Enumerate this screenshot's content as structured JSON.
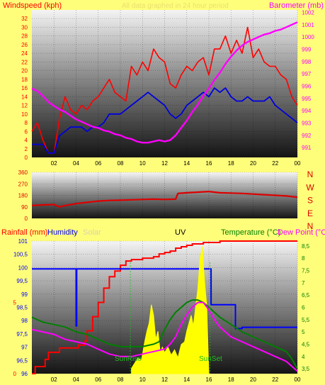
{
  "colors": {
    "background": "#fffe7a",
    "wind_avg": "#0000dd",
    "wind_gust": "#ff0000",
    "barometer": "#ff00ff",
    "direction": "#dd0000",
    "rain": "#ff0000",
    "humidity": "#0000ff",
    "solar": "#ffff00",
    "uv": "#ff0000",
    "temperature": "#008000",
    "dew_point": "#ff00ff",
    "header_faint": "#e8e070",
    "solar_label": "#d8d4a8"
  },
  "top_header": {
    "left_label": "Windspeed (kph)",
    "center_label": "All data graphed in 24 hour period",
    "right_label": "Barometer (mb)"
  },
  "bottom_header": {
    "rain": "Rainfall (mm)",
    "humidity": "Humidity",
    "solar": "Solar",
    "uv": "UV",
    "temperature": "Temperature (°C)",
    "dew_point": "Dew Point (°C)"
  },
  "annotations": {
    "sunrise": "SunRise",
    "sunset": "SunSet"
  },
  "x_ticks": [
    "02",
    "04",
    "06",
    "08",
    "10",
    "12",
    "14",
    "16",
    "18",
    "20",
    "22",
    "00"
  ],
  "chart_data": [
    {
      "type": "line",
      "name": "wind-barometer",
      "x_range": [
        0,
        24
      ],
      "y_left": {
        "label": "Windspeed (kph)",
        "ticks": [
          "0",
          "2",
          "4",
          "6",
          "8",
          "10",
          "12",
          "14",
          "16",
          "18",
          "20",
          "22",
          "24",
          "26",
          "28",
          "30",
          "32"
        ],
        "range": [
          0,
          34
        ]
      },
      "y_right": {
        "label": "Barometer (mb)",
        "ticks": [
          "991",
          "992",
          "993",
          "994",
          "995",
          "996",
          "997",
          "998",
          "999",
          "1000",
          "1001",
          "1002"
        ],
        "range": [
          990.2,
          1002.2
        ]
      },
      "series": [
        {
          "key": "gust",
          "axis": "left",
          "x": [
            0,
            0.5,
            1,
            1.5,
            2,
            2.5,
            3,
            3.5,
            4,
            4.5,
            5,
            5.5,
            6,
            6.5,
            7,
            7.5,
            8,
            8.5,
            9,
            9.5,
            10,
            10.5,
            11,
            11.5,
            12,
            12.5,
            13,
            13.5,
            14,
            14.5,
            15,
            15.5,
            16,
            16.5,
            17,
            17.5,
            18,
            18.5,
            19,
            19.5,
            20,
            20.5,
            21,
            21.5,
            22,
            22.5,
            23,
            23.5,
            24
          ],
          "y": [
            6,
            8,
            4,
            1,
            1,
            9,
            14,
            11,
            10,
            12,
            11,
            13,
            14,
            16,
            18,
            15,
            14,
            13,
            21,
            19,
            22,
            20,
            25,
            23,
            22,
            17,
            16,
            19,
            21,
            20,
            22,
            23,
            19,
            25,
            25,
            28,
            24,
            27,
            24,
            30,
            23,
            25,
            22,
            21,
            21,
            19,
            18,
            14,
            12
          ]
        },
        {
          "key": "avg",
          "axis": "left",
          "x": [
            0,
            0.5,
            1,
            1.5,
            2,
            2.5,
            3,
            3.5,
            4,
            4.5,
            5,
            5.5,
            6,
            6.5,
            7,
            7.5,
            8,
            8.5,
            9,
            9.5,
            10,
            10.5,
            11,
            11.5,
            12,
            12.5,
            13,
            13.5,
            14,
            14.5,
            15,
            15.5,
            16,
            16.5,
            17,
            17.5,
            18,
            18.5,
            19,
            19.5,
            20,
            20.5,
            21,
            21.5,
            22,
            22.5,
            23,
            23.5,
            24
          ],
          "y": [
            3,
            3,
            3,
            1,
            1,
            5,
            6,
            7,
            7,
            7,
            6,
            7,
            7,
            8,
            10,
            10,
            10,
            11,
            12,
            13,
            14,
            15,
            14,
            13,
            12,
            10,
            9,
            10,
            12,
            13,
            14,
            15,
            14,
            16,
            15,
            16,
            14,
            13,
            13,
            14,
            13,
            13,
            13,
            14,
            12,
            11,
            10,
            9,
            8
          ]
        },
        {
          "key": "baro",
          "axis": "right",
          "x": [
            0,
            0.5,
            1,
            1.5,
            2,
            2.5,
            3,
            3.5,
            4,
            4.5,
            5,
            5.5,
            6,
            6.5,
            7,
            7.5,
            8,
            8.5,
            9,
            9.5,
            10,
            10.5,
            11,
            11.5,
            12,
            12.5,
            13,
            13.5,
            14,
            14.5,
            15,
            15.5,
            16,
            16.5,
            17,
            17.5,
            18,
            18.5,
            19,
            19.5,
            20,
            20.5,
            21,
            21.5,
            22,
            22.5,
            23,
            23.5,
            24
          ],
          "y": [
            995.8,
            995.6,
            995.2,
            994.7,
            994.4,
            994.1,
            993.9,
            993.6,
            993.3,
            993.1,
            992.9,
            992.7,
            992.6,
            992.4,
            992.3,
            992.1,
            992,
            991.8,
            991.7,
            991.5,
            991.4,
            991.4,
            991.5,
            991.6,
            991.5,
            991.6,
            992,
            992.6,
            993.2,
            993.9,
            994.5,
            995.2,
            995.8,
            996.5,
            997.1,
            997.8,
            998.4,
            998.9,
            999.3,
            999.6,
            999.8,
            1000,
            1000.2,
            1000.3,
            1000.5,
            1000.6,
            1000.8,
            1001,
            1001.2
          ]
        }
      ]
    },
    {
      "type": "line",
      "name": "wind-direction",
      "x_range": [
        0,
        24
      ],
      "y_left": {
        "ticks": [
          "0",
          "90",
          "180",
          "270",
          "360"
        ],
        "range": [
          0,
          360
        ]
      },
      "y_right": {
        "ticks": [
          "N",
          "W",
          "S",
          "E",
          "N"
        ]
      },
      "series": [
        {
          "key": "dir",
          "axis": "left",
          "x": [
            0,
            1,
            2,
            2.5,
            3,
            4,
            5,
            6,
            7,
            8,
            9,
            10,
            11,
            12,
            13,
            13.2,
            14,
            15,
            16,
            17,
            18,
            19,
            20,
            21,
            22,
            23,
            24
          ],
          "y": [
            100,
            105,
            108,
            90,
            100,
            115,
            125,
            135,
            140,
            142,
            145,
            148,
            150,
            148,
            150,
            195,
            200,
            205,
            210,
            200,
            198,
            195,
            190,
            185,
            180,
            175,
            165
          ]
        }
      ]
    },
    {
      "type": "line",
      "name": "rain-humidity-solar-uv-temp-dew",
      "x_range": [
        0,
        24
      ],
      "y_left": {
        "label": "Humidity",
        "ticks": [
          "96",
          "96,5",
          "97",
          "97,5",
          "98",
          "98,5",
          "99",
          "99,5",
          "100",
          "100,5",
          "101"
        ],
        "range": [
          96,
          101
        ]
      },
      "y_rain": {
        "label": "Rainfall (mm)",
        "ticks": [
          "0",
          "5"
        ],
        "range": [
          0,
          9.3
        ]
      },
      "y_right": {
        "label": "Temperature (°C)",
        "ticks": [
          "3,5",
          "4",
          "4,5",
          "5",
          "5,5",
          "6",
          "6,5",
          "7",
          "7,5",
          "8",
          "8,5"
        ],
        "range": [
          3.3,
          8.7
        ]
      },
      "series": [
        {
          "key": "rain",
          "axis": "rain",
          "x": [
            0,
            0.3,
            0.8,
            1.2,
            1.5,
            2,
            2.5,
            3,
            4,
            4.2,
            4.8,
            5,
            5.5,
            6,
            6.5,
            7,
            7.5,
            8,
            8.5,
            9,
            10,
            11,
            11.5,
            12,
            12.5,
            13,
            13.5,
            14,
            14.5,
            15,
            15.5,
            16,
            17,
            18,
            18.5,
            19,
            20,
            21,
            22,
            23,
            23.4,
            24
          ],
          "y": [
            0,
            0.5,
            0.5,
            1,
            1.5,
            1.5,
            1.8,
            1.8,
            1.8,
            2,
            2.3,
            3,
            4,
            5,
            6,
            6.8,
            7.2,
            7.6,
            7.9,
            8,
            8.1,
            8.2,
            8.4,
            8.5,
            8.6,
            8.8,
            8.9,
            9,
            9.1,
            9.1,
            9.2,
            9.2,
            9.3,
            9.3,
            9.3,
            9.3,
            9.3,
            9.3,
            9.3,
            9.3,
            9.3,
            9.3
          ]
        },
        {
          "key": "humidity",
          "axis": "left",
          "x": [
            0,
            4,
            4,
            4.05,
            4.05,
            16.2,
            16.2,
            18.4,
            18.4,
            19,
            19,
            24
          ],
          "y": [
            99.95,
            99.95,
            97.8,
            97.8,
            99.95,
            99.95,
            98.6,
            98.6,
            97.7,
            97.7,
            97.75,
            97.75
          ]
        },
        {
          "key": "solar",
          "axis": "left",
          "x": [
            9,
            9.3,
            9.6,
            9.9,
            10.2,
            10.4,
            10.6,
            10.8,
            11,
            11.2,
            11.4,
            11.6,
            11.8,
            12,
            12.3,
            12.6,
            12.9,
            13.2,
            13.5,
            13.8,
            14,
            14.2,
            14.4,
            14.6,
            14.8,
            15,
            15.2,
            15.4,
            15.6,
            15.8,
            16
          ],
          "y": [
            96.2,
            96.4,
            96.6,
            96.5,
            97.2,
            97.6,
            97.9,
            98.6,
            98.2,
            97.3,
            97.6,
            96.8,
            97.0,
            96.8,
            97.0,
            96.7,
            96.9,
            96.6,
            97.1,
            97.2,
            97.6,
            97.9,
            98.2,
            97.8,
            98.5,
            99.2,
            100.3,
            100.8,
            99.5,
            98.6,
            96.0
          ]
        },
        {
          "key": "temp",
          "axis": "right",
          "x": [
            0,
            1,
            2,
            3,
            4,
            5,
            6,
            7,
            8,
            9,
            10,
            11,
            11.5,
            12,
            12.5,
            13,
            13.5,
            14,
            14.5,
            15,
            15.5,
            16,
            16.5,
            17,
            18,
            19,
            20,
            21,
            22,
            23,
            23.5,
            24
          ],
          "y": [
            5.6,
            5.4,
            5.3,
            5.2,
            5.0,
            4.9,
            4.7,
            4.5,
            4.4,
            4.4,
            4.4,
            4.5,
            4.6,
            5.1,
            5.5,
            5.8,
            6.0,
            6.2,
            6.3,
            6.3,
            6.2,
            6.0,
            5.8,
            5.6,
            5.3,
            5.0,
            4.8,
            4.6,
            4.4,
            4.2,
            3.9,
            3.5
          ]
        },
        {
          "key": "dew",
          "axis": "right",
          "x": [
            0,
            1,
            2,
            3,
            4,
            5,
            6,
            7,
            8,
            9,
            10,
            11,
            12,
            12.5,
            13,
            13.5,
            14,
            14.5,
            15,
            15.5,
            16,
            16.5,
            17,
            18,
            19,
            20,
            21,
            22,
            23,
            24
          ],
          "y": [
            5.1,
            5.0,
            4.9,
            4.7,
            4.6,
            4.5,
            4.3,
            4.1,
            4.0,
            4.0,
            4.1,
            4.2,
            4.3,
            4.5,
            4.8,
            5.3,
            5.7,
            6.0,
            6.2,
            6.2,
            5.9,
            5.5,
            5.2,
            4.8,
            4.6,
            4.4,
            4.2,
            4.0,
            3.8,
            3.4
          ]
        },
        {
          "key": "uv",
          "axis": "rain",
          "note": "UV trace drawn with same line family as rain",
          "x": [],
          "y": []
        }
      ]
    }
  ]
}
